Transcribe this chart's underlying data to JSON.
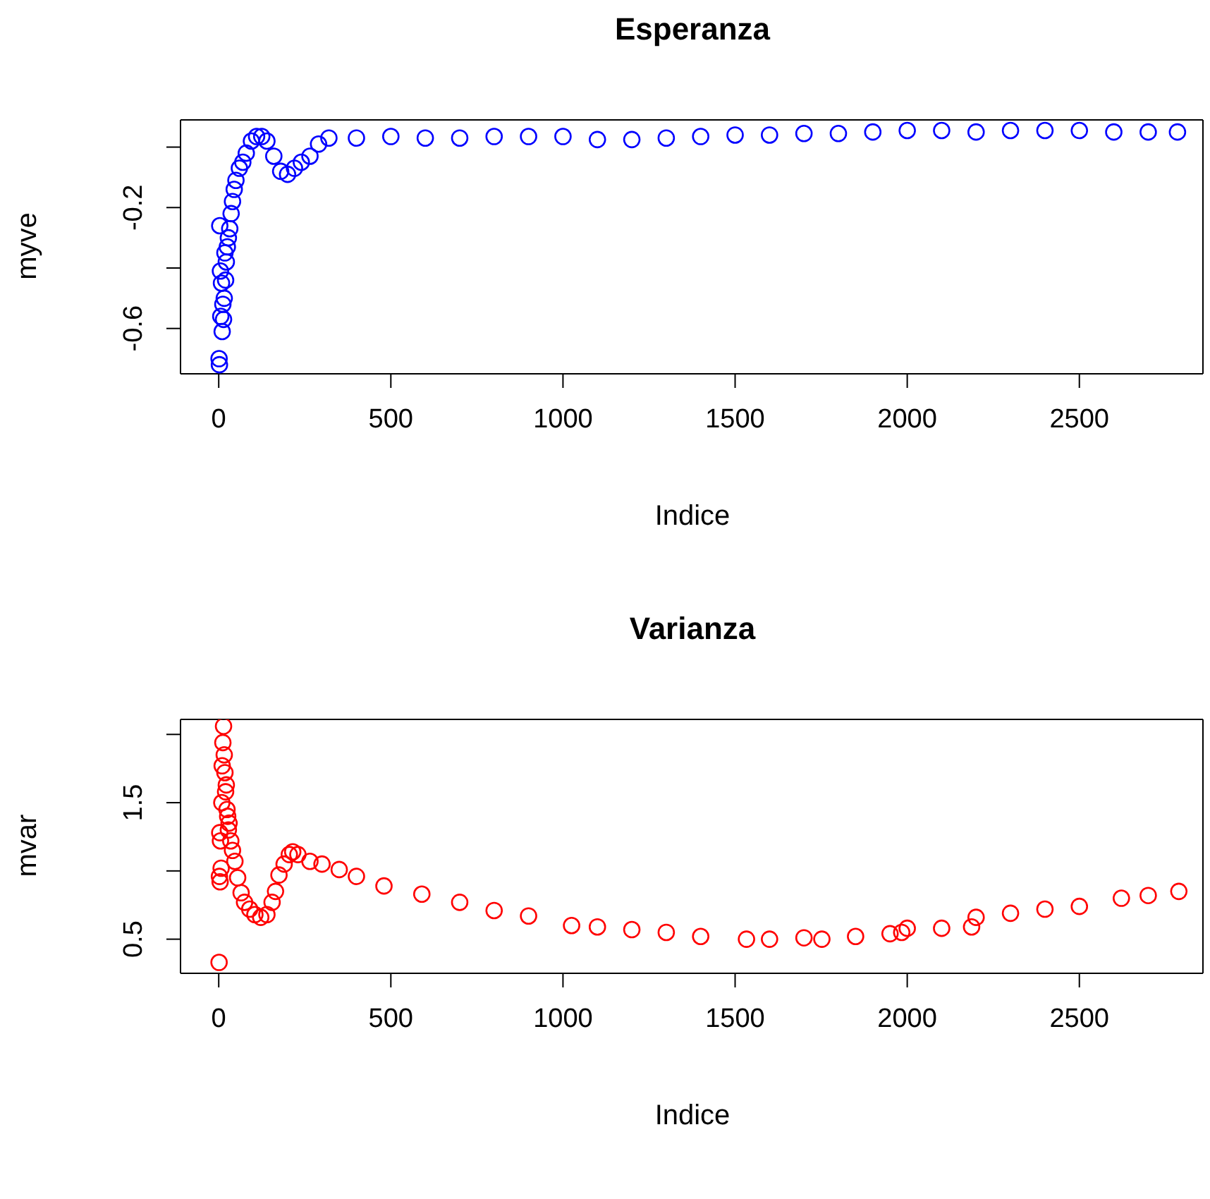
{
  "chart_data": [
    {
      "type": "scatter",
      "title": "Esperanza",
      "xlabel": "Indice",
      "ylabel": "myve",
      "color": "#0000ff",
      "marker": "circle",
      "x": [
        1,
        2,
        3,
        5,
        6,
        8,
        10,
        12,
        14,
        16,
        18,
        20,
        22,
        25,
        28,
        32,
        36,
        40,
        45,
        50,
        60,
        70,
        80,
        95,
        110,
        125,
        140,
        160,
        180,
        200,
        220,
        240,
        265,
        290,
        320,
        400,
        500,
        600,
        700,
        800,
        900,
        1000,
        1100,
        1200,
        1300,
        1400,
        1500,
        1600,
        1700,
        1800,
        1900,
        2000,
        2100,
        2200,
        2300,
        2400,
        2500,
        2600,
        2700,
        2785
      ],
      "values": [
        -0.7,
        -0.72,
        -0.26,
        -0.41,
        -0.56,
        -0.45,
        -0.61,
        -0.52,
        -0.57,
        -0.5,
        -0.35,
        -0.44,
        -0.38,
        -0.33,
        -0.3,
        -0.27,
        -0.22,
        -0.18,
        -0.14,
        -0.11,
        -0.07,
        -0.05,
        -0.02,
        0.02,
        0.035,
        0.035,
        0.02,
        -0.03,
        -0.08,
        -0.09,
        -0.07,
        -0.05,
        -0.03,
        0.01,
        0.03,
        0.03,
        0.035,
        0.03,
        0.03,
        0.035,
        0.035,
        0.035,
        0.025,
        0.025,
        0.03,
        0.035,
        0.04,
        0.04,
        0.045,
        0.045,
        0.05,
        0.055,
        0.055,
        0.05,
        0.055,
        0.055,
        0.055,
        0.05,
        0.05,
        0.05
      ],
      "xlim": [
        -111,
        2859
      ],
      "xticks": [
        0,
        500,
        1000,
        1500,
        2000,
        2500
      ],
      "ylim": [
        -0.75,
        0.09
      ],
      "yticks": [
        -0.6,
        {
          "value": -0.4,
          "label": null
        },
        -0.2,
        {
          "value": 0,
          "label": null
        }
      ]
    },
    {
      "type": "scatter",
      "title": "Varianza",
      "xlabel": "Indice",
      "ylabel": "mvar",
      "color": "#ff0000",
      "marker": "circle",
      "x": [
        1,
        2,
        3,
        4,
        5,
        7,
        9,
        10,
        12,
        14,
        16,
        18,
        20,
        22,
        24,
        26,
        28,
        30,
        35,
        40,
        47,
        55,
        65,
        75,
        90,
        105,
        122,
        140,
        155,
        165,
        175,
        190,
        205,
        215,
        230,
        265,
        300,
        350,
        400,
        480,
        590,
        700,
        800,
        900,
        1025,
        1100,
        1200,
        1300,
        1400,
        1533,
        1600,
        1700,
        1752,
        1850,
        1950,
        1984,
        2000,
        2100,
        2187,
        2200,
        2300,
        2400,
        2500,
        2622,
        2700,
        2789
      ],
      "values": [
        0.33,
        0.96,
        1.28,
        0.92,
        1.22,
        1.02,
        1.5,
        1.77,
        1.94,
        2.06,
        1.85,
        1.72,
        1.58,
        1.63,
        1.45,
        1.4,
        1.3,
        1.35,
        1.22,
        1.15,
        1.07,
        0.95,
        0.84,
        0.77,
        0.72,
        0.68,
        0.66,
        0.68,
        0.77,
        0.85,
        0.97,
        1.05,
        1.12,
        1.14,
        1.12,
        1.07,
        1.05,
        1.01,
        0.96,
        0.89,
        0.83,
        0.77,
        0.71,
        0.67,
        0.6,
        0.59,
        0.57,
        0.55,
        0.52,
        0.5,
        0.5,
        0.51,
        0.5,
        0.52,
        0.54,
        0.55,
        0.58,
        0.58,
        0.59,
        0.66,
        0.69,
        0.72,
        0.74,
        0.8,
        0.82,
        0.85
      ],
      "xlim": [
        -111,
        2859
      ],
      "xticks": [
        0,
        500,
        1000,
        1500,
        2000,
        2500
      ],
      "ylim": [
        0.25,
        2.11
      ],
      "yticks": [
        0.5,
        {
          "value": 1.0,
          "label": null
        },
        1.5,
        {
          "value": 2.0,
          "label": null
        }
      ]
    }
  ]
}
